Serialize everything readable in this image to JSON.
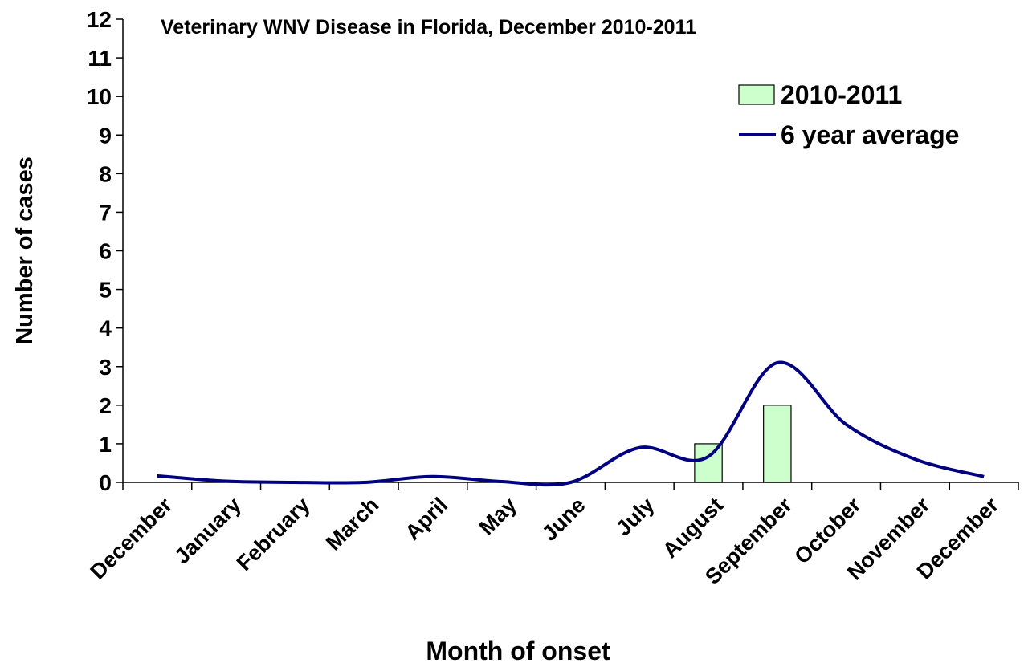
{
  "chart_data": {
    "type": "bar",
    "title": "Veterinary WNV Disease in Florida, December 2010-2011",
    "x_label": "Month of onset",
    "y_label": "Number of cases",
    "categories": [
      "December",
      "January",
      "February",
      "March",
      "April",
      "May",
      "June",
      "July",
      "August",
      "September",
      "October",
      "November",
      "December"
    ],
    "series": [
      {
        "name": "2010-2011",
        "type": "bar",
        "color": "#ccffcc",
        "values": [
          0,
          0,
          0,
          0,
          0,
          0,
          0,
          0,
          1,
          2,
          0,
          0,
          0
        ]
      },
      {
        "name": "6 year average",
        "type": "line",
        "color": "#000080",
        "values": [
          0.17,
          0.03,
          0,
          0,
          0.15,
          0.02,
          0,
          0.9,
          0.67,
          3.1,
          1.5,
          0.6,
          0.15
        ]
      }
    ],
    "ylim": [
      0,
      12
    ],
    "yticks": [
      0,
      1,
      2,
      3,
      4,
      5,
      6,
      7,
      8,
      9,
      10,
      11,
      12
    ],
    "grid": false,
    "legend": "upper right"
  }
}
